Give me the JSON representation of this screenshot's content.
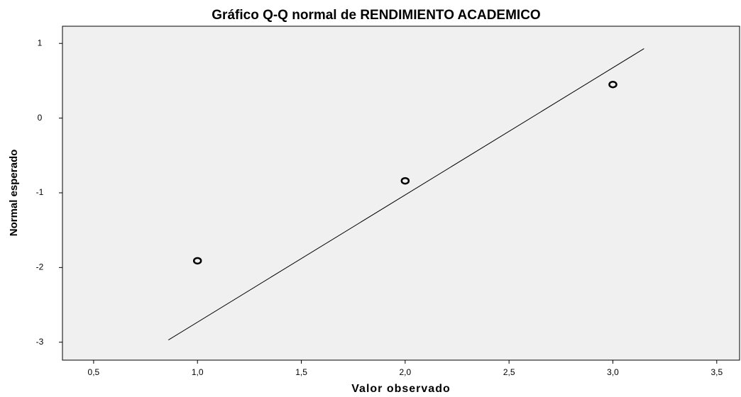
{
  "chart_data": {
    "type": "scatter",
    "title": "Gráfico Q-Q normal de RENDIMIENTO ACADEMICO",
    "x_label": "Valor observado",
    "y_label": "Normal esperado",
    "x": [
      1,
      2,
      3
    ],
    "values": [
      -1.91,
      -0.84,
      0.45
    ],
    "reference_line": {
      "x": [
        0.86,
        3.15
      ],
      "y": [
        -2.97,
        0.93
      ]
    },
    "xlim": [
      0.35,
      3.61
    ],
    "ylim": [
      -3.24,
      1.23
    ],
    "xticks": [
      {
        "value": 0.5,
        "label": "0,5"
      },
      {
        "value": 1,
        "label": "1,0"
      },
      {
        "value": 1.5,
        "label": "1,5"
      },
      {
        "value": 2,
        "label": "2,0"
      },
      {
        "value": 2.5,
        "label": "2,5"
      },
      {
        "value": 3,
        "label": "3,0"
      },
      {
        "value": 3.5,
        "label": "3,5"
      }
    ],
    "yticks": [
      1,
      0,
      -1,
      -2,
      -3
    ],
    "plot_background": "#f0f0f0",
    "color": "#000000"
  }
}
